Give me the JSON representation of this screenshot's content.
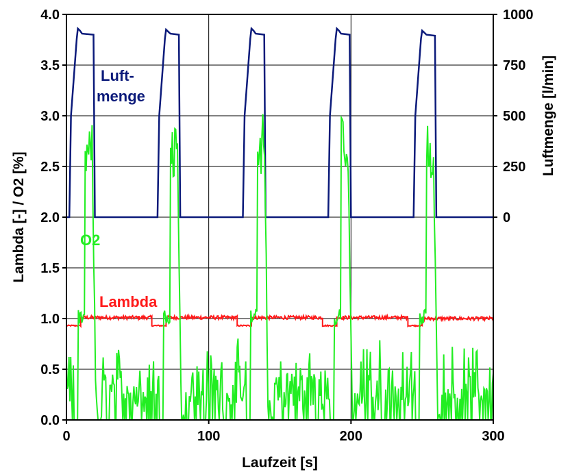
{
  "chart_data": {
    "type": "line",
    "xlabel": "Laufzeit [s]",
    "ylabel_left": "Lambda [-] / O2 [%]",
    "ylabel_right": "Luftmenge [l/min]",
    "xlim": [
      0,
      300
    ],
    "ylim_left": [
      0,
      4
    ],
    "ylim_right_mapping": {
      "left_at_zero": 2.0,
      "left_at_1000": 4.0
    },
    "x_ticks": [
      "0",
      "100",
      "200",
      "300"
    ],
    "y_ticks_left": [
      "0.0",
      "0.5",
      "1.0",
      "1.5",
      "2.0",
      "2.5",
      "3.0",
      "3.5",
      "4.0"
    ],
    "y_ticks_right": [
      "0",
      "250",
      "500",
      "750",
      "1000"
    ],
    "grid": true,
    "annotations": {
      "luft_line1": "Luft-",
      "luft_line2": "menge",
      "o2": "O2",
      "lambda": "Lambda"
    },
    "series": [
      {
        "name": "Luftmenge",
        "color": "#0b1a7a",
        "axis": "right",
        "unit": "l/min",
        "cycles": [
          {
            "rise_start": 2,
            "rise_end": 8,
            "peak": 930,
            "plateau": 900,
            "fall_start": 19,
            "fall_end": 20
          },
          {
            "rise_start": 64,
            "rise_end": 70,
            "peak": 925,
            "plateau": 900,
            "fall_start": 79,
            "fall_end": 80
          },
          {
            "rise_start": 124,
            "rise_end": 130,
            "peak": 930,
            "plateau": 900,
            "fall_start": 139,
            "fall_end": 140
          },
          {
            "rise_start": 184,
            "rise_end": 190,
            "peak": 930,
            "plateau": 900,
            "fall_start": 199,
            "fall_end": 200
          },
          {
            "rise_start": 244,
            "rise_end": 250,
            "peak": 920,
            "plateau": 895,
            "fall_start": 259,
            "fall_end": 260
          }
        ],
        "baseline": 0
      },
      {
        "name": "Lambda",
        "color": "#ff1a1a",
        "axis": "left",
        "levels": [
          {
            "x0": 0,
            "x1": 10,
            "value": 0.93
          },
          {
            "x0": 10,
            "x1": 60,
            "value": 1.01
          },
          {
            "x0": 60,
            "x1": 70,
            "value": 0.93
          },
          {
            "x0": 70,
            "x1": 120,
            "value": 1.01
          },
          {
            "x0": 120,
            "x1": 130,
            "value": 0.93
          },
          {
            "x0": 130,
            "x1": 180,
            "value": 1.01
          },
          {
            "x0": 180,
            "x1": 190,
            "value": 0.93
          },
          {
            "x0": 190,
            "x1": 240,
            "value": 1.01
          },
          {
            "x0": 240,
            "x1": 250,
            "value": 0.93
          },
          {
            "x0": 250,
            "x1": 300,
            "value": 1.0
          }
        ]
      },
      {
        "name": "O2",
        "color": "#22ee22",
        "axis": "left",
        "peaks": [
          {
            "x": 17,
            "value": 2.93
          },
          {
            "x": 77,
            "value": 2.9
          },
          {
            "x": 138,
            "value": 3.1
          },
          {
            "x": 197,
            "value": 2.8
          },
          {
            "x": 257,
            "value": 2.75
          }
        ],
        "noise_max": 0.85
      }
    ]
  }
}
